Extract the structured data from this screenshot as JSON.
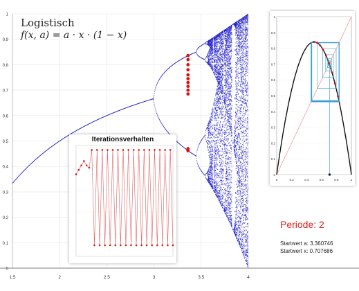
{
  "title": {
    "line1": "Logistisch",
    "line2": "f(x, a) = a · x · (1 − x)"
  },
  "periode": "Periode: 2",
  "startwert_a": "Startwert a: 3.360746",
  "startwert_x": "Startwert x: 0.707686",
  "colors": {
    "bifurcation": "#2222cc",
    "highlight": "#dd1111",
    "cobweb_curve": "#111111",
    "cobweb_diag": "#e08080",
    "cobweb_path": "#3d9fd6",
    "iter_line": "#e06060"
  },
  "chart_data": [
    {
      "type": "scatter",
      "name": "bifurcation-diagram",
      "xlim": [
        1.5,
        4
      ],
      "ylim": [
        0,
        1
      ],
      "x_ticks": [
        "1.5",
        "2",
        "2.5",
        "3",
        "3.5",
        "4"
      ],
      "y_ticks": [
        "0",
        "0.1",
        "0.2",
        "0.3",
        "0.4",
        "0.5",
        "0.6",
        "0.7",
        "0.8",
        "0.9",
        "1"
      ],
      "highlight_a": 3.360746,
      "highlight_points": [
        0.836,
        0.82,
        0.8,
        0.78,
        0.76,
        0.745,
        0.73,
        0.715,
        0.7,
        0.685,
        0.47,
        0.462
      ],
      "grid": true
    },
    {
      "type": "line",
      "name": "iterationsverhalten",
      "title": "Iterationsverhalten",
      "values": [
        0.37,
        0.39,
        0.41,
        0.43,
        0.41,
        0.4,
        0.48,
        0.05,
        0.48,
        0.05,
        0.48,
        0.05,
        0.48,
        0.05,
        0.48,
        0.05,
        0.48,
        0.05,
        0.48,
        0.05,
        0.48,
        0.05,
        0.48,
        0.05,
        0.48,
        0.05,
        0.48,
        0.05,
        0.48,
        0.05,
        0.48,
        0.05,
        0.48,
        0.05,
        0.48,
        0.05,
        0.48,
        0.05
      ],
      "ylim": [
        0,
        0.5
      ]
    },
    {
      "type": "line",
      "name": "cobweb",
      "xlim": [
        0,
        1
      ],
      "ylim": [
        0,
        1
      ],
      "x_ticks": [
        "0",
        "0.2",
        "0.4",
        "0.6",
        "0.8",
        "1"
      ],
      "y_ticks": [
        "0",
        "0.1",
        "0.2",
        "0.3",
        "0.4",
        "0.5",
        "0.6",
        "0.7",
        "0.8",
        "0.9",
        "1"
      ],
      "a": 3.360746,
      "x0": 0.707686,
      "cycle": [
        0.468,
        0.836
      ]
    }
  ]
}
